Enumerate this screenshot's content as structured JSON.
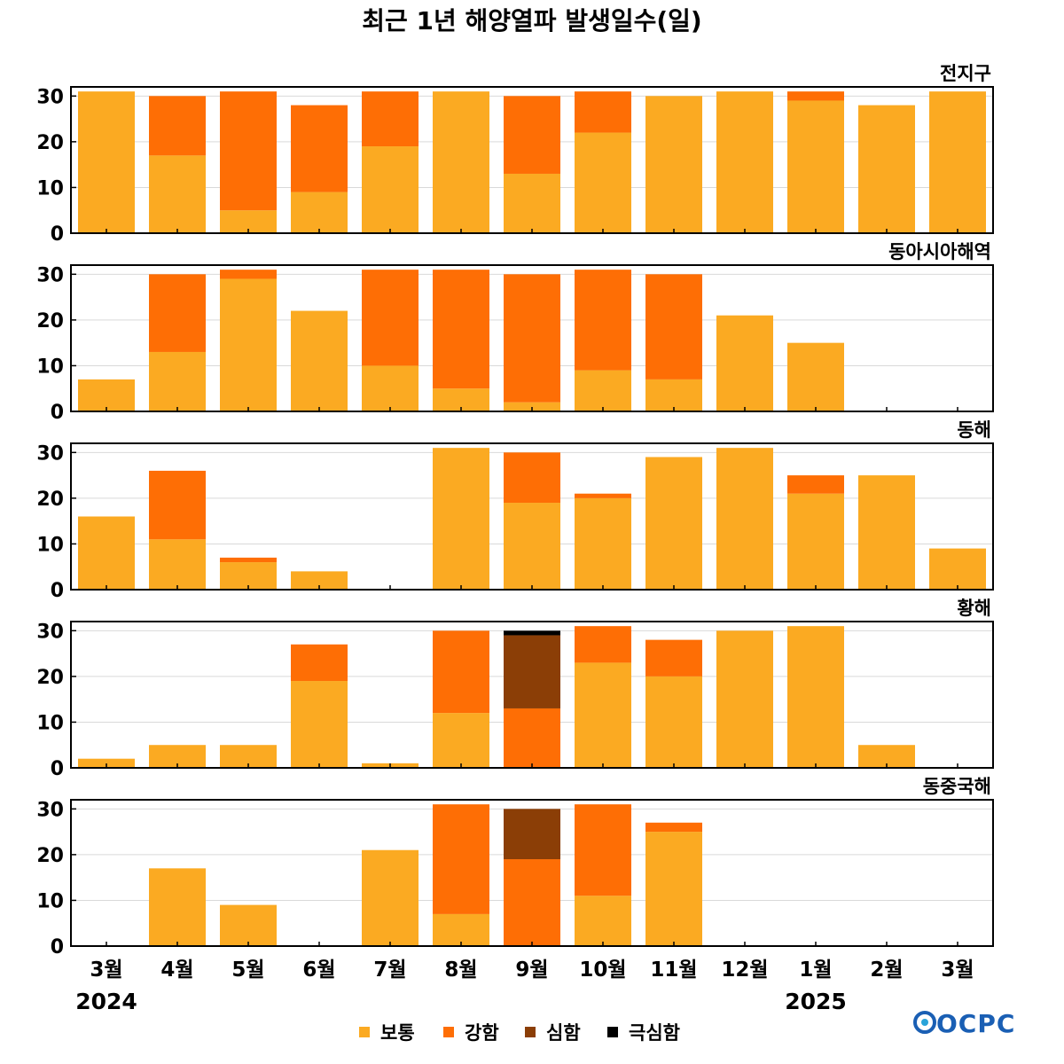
{
  "chart_data": {
    "type": "bar",
    "stacked": true,
    "title": "최근 1년 해양열파 발생일수(일)",
    "categories": [
      "3월",
      "4월",
      "5월",
      "6월",
      "7월",
      "8월",
      "9월",
      "10월",
      "11월",
      "12월",
      "1월",
      "2월",
      "3월"
    ],
    "year_labels": [
      {
        "label": "2024",
        "category_index": 0
      },
      {
        "label": "2025",
        "category_index": 10
      }
    ],
    "ylim": [
      0,
      32
    ],
    "yticks": [
      0,
      10,
      20,
      30
    ],
    "grid": true,
    "legend_placement": "bottom",
    "legend": [
      {
        "name": "보통",
        "color": "#FBAA22"
      },
      {
        "name": "강함",
        "color": "#FE6E05"
      },
      {
        "name": "심함",
        "color": "#8B3E06"
      },
      {
        "name": "극심함",
        "color": "#000000"
      }
    ],
    "panels": [
      {
        "label": "전지구",
        "series": [
          {
            "name": "보통",
            "values": [
              31,
              17,
              5,
              9,
              19,
              31,
              13,
              22,
              30,
              31,
              29,
              28,
              31
            ]
          },
          {
            "name": "강함",
            "values": [
              0,
              13,
              26,
              19,
              12,
              0,
              17,
              9,
              0,
              0,
              2,
              0,
              0
            ]
          },
          {
            "name": "심함",
            "values": [
              0,
              0,
              0,
              0,
              0,
              0,
              0,
              0,
              0,
              0,
              0,
              0,
              0
            ]
          },
          {
            "name": "극심함",
            "values": [
              0,
              0,
              0,
              0,
              0,
              0,
              0,
              0,
              0,
              0,
              0,
              0,
              0
            ]
          }
        ]
      },
      {
        "label": "동아시아해역",
        "series": [
          {
            "name": "보통",
            "values": [
              7,
              13,
              29,
              22,
              10,
              5,
              2,
              9,
              7,
              21,
              15,
              0,
              0
            ]
          },
          {
            "name": "강함",
            "values": [
              0,
              17,
              2,
              0,
              21,
              26,
              28,
              22,
              23,
              0,
              0,
              0,
              0
            ]
          },
          {
            "name": "심함",
            "values": [
              0,
              0,
              0,
              0,
              0,
              0,
              0,
              0,
              0,
              0,
              0,
              0,
              0
            ]
          },
          {
            "name": "극심함",
            "values": [
              0,
              0,
              0,
              0,
              0,
              0,
              0,
              0,
              0,
              0,
              0,
              0,
              0
            ]
          }
        ]
      },
      {
        "label": "동해",
        "series": [
          {
            "name": "보통",
            "values": [
              16,
              11,
              6,
              4,
              0,
              31,
              19,
              20,
              29,
              31,
              21,
              25,
              9
            ]
          },
          {
            "name": "강함",
            "values": [
              0,
              15,
              1,
              0,
              0,
              0,
              11,
              1,
              0,
              0,
              4,
              0,
              0
            ]
          },
          {
            "name": "심함",
            "values": [
              0,
              0,
              0,
              0,
              0,
              0,
              0,
              0,
              0,
              0,
              0,
              0,
              0
            ]
          },
          {
            "name": "극심함",
            "values": [
              0,
              0,
              0,
              0,
              0,
              0,
              0,
              0,
              0,
              0,
              0,
              0,
              0
            ]
          }
        ]
      },
      {
        "label": "황해",
        "series": [
          {
            "name": "보통",
            "values": [
              2,
              5,
              5,
              19,
              1,
              12,
              0,
              23,
              20,
              30,
              31,
              5,
              0
            ]
          },
          {
            "name": "강함",
            "values": [
              0,
              0,
              0,
              8,
              0,
              18,
              13,
              8,
              8,
              0,
              0,
              0,
              0
            ]
          },
          {
            "name": "심함",
            "values": [
              0,
              0,
              0,
              0,
              0,
              0,
              16,
              0,
              0,
              0,
              0,
              0,
              0
            ]
          },
          {
            "name": "극심함",
            "values": [
              0,
              0,
              0,
              0,
              0,
              0,
              1,
              0,
              0,
              0,
              0,
              0,
              0
            ]
          }
        ]
      },
      {
        "label": "동중국해",
        "series": [
          {
            "name": "보통",
            "values": [
              0,
              17,
              9,
              0,
              21,
              7,
              0,
              11,
              25,
              0,
              0,
              0,
              0
            ]
          },
          {
            "name": "강함",
            "values": [
              0,
              0,
              0,
              0,
              0,
              24,
              19,
              20,
              2,
              0,
              0,
              0,
              0
            ]
          },
          {
            "name": "심함",
            "values": [
              0,
              0,
              0,
              0,
              0,
              0,
              11,
              0,
              0,
              0,
              0,
              0,
              0
            ]
          },
          {
            "name": "극심함",
            "values": [
              0,
              0,
              0,
              0,
              0,
              0,
              0,
              0,
              0,
              0,
              0,
              0,
              0
            ]
          }
        ]
      }
    ]
  },
  "logo": {
    "text": "OCPC",
    "icon": "ocpc-logo"
  }
}
